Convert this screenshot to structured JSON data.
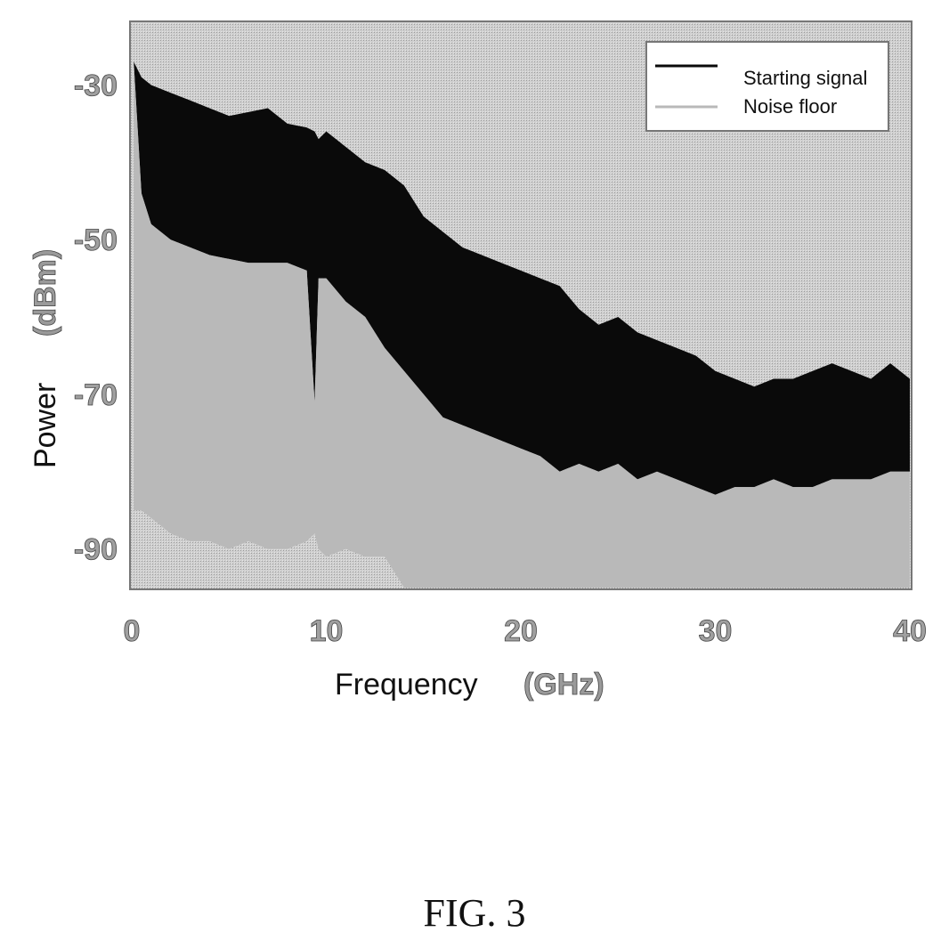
{
  "figure_caption": "FIG. 3",
  "colors": {
    "signal": "#0a0a0a",
    "noise_floor": "#b9b9b9",
    "plot_background": "#d8d8d8"
  },
  "chart_data": {
    "type": "area",
    "title": "",
    "xlabel": "Frequency",
    "xlabel_unit": "(GHz)",
    "ylabel": "Power",
    "ylabel_unit": "(dBm)",
    "xlim": [
      0,
      40
    ],
    "ylim": [
      -95,
      -22
    ],
    "xticks": [
      0,
      10,
      20,
      30,
      40
    ],
    "xtick_labels": [
      "0",
      "10",
      "20",
      "30",
      "40"
    ],
    "yticks": [
      -30,
      -50,
      -70,
      -90
    ],
    "ytick_labels": [
      "-30",
      "-50",
      "-70",
      "-90"
    ],
    "grid": false,
    "legend": {
      "placement": "top-right",
      "entries": [
        "Starting signal",
        "Noise floor"
      ]
    },
    "series": [
      {
        "name": "Starting signal",
        "x": [
          0.1,
          0.5,
          1,
          2,
          3,
          4,
          5,
          6,
          7,
          8,
          9,
          9.4,
          9.6,
          10,
          11,
          12,
          13,
          14,
          15,
          16,
          17,
          18,
          19,
          20,
          21,
          22,
          23,
          24,
          25,
          26,
          27,
          28,
          29,
          30,
          31,
          32,
          33,
          34,
          35,
          36,
          37,
          38,
          39,
          40
        ],
        "upper": [
          -27,
          -29,
          -30,
          -31,
          -32,
          -33,
          -34,
          -33.5,
          -33,
          -35,
          -35.5,
          -36,
          -37,
          -36,
          -38,
          -40,
          -41,
          -43,
          -47,
          -49,
          -51,
          -52,
          -53,
          -54,
          -55,
          -56,
          -59,
          -61,
          -60,
          -62,
          -63,
          -64,
          -65,
          -67,
          -68,
          -69,
          -68,
          -68,
          -67,
          -66,
          -67,
          -68,
          -66,
          -68
        ],
        "lower": [
          -27,
          -44,
          -48,
          -50,
          -51,
          -52,
          -52.5,
          -53,
          -53,
          -53,
          -54,
          -71,
          -55,
          -55,
          -58,
          -60,
          -64,
          -67,
          -70,
          -73,
          -74,
          -75,
          -76,
          -77,
          -78,
          -80,
          -79,
          -80,
          -79,
          -81,
          -80,
          -81,
          -82,
          -83,
          -82,
          -82,
          -81,
          -82,
          -82,
          -81,
          -81,
          -81,
          -80,
          -80
        ]
      },
      {
        "name": "Noise floor",
        "x": [
          0.1,
          0.5,
          1,
          2,
          3,
          4,
          5,
          6,
          7,
          8,
          9,
          9.4,
          9.6,
          10,
          11,
          12,
          13,
          14,
          15,
          16,
          17,
          18,
          19,
          20,
          21,
          22,
          23,
          24,
          25,
          26,
          27,
          28,
          29,
          30,
          31,
          32,
          33,
          34,
          35,
          36,
          37,
          38,
          39,
          40
        ],
        "upper": [
          -27,
          -44,
          -48,
          -50,
          -51,
          -52,
          -52.5,
          -53,
          -53,
          -53,
          -54,
          -71,
          -55,
          -55,
          -58,
          -60,
          -64,
          -67,
          -70,
          -73,
          -74,
          -75,
          -76,
          -77,
          -78,
          -80,
          -79,
          -80,
          -79,
          -81,
          -80,
          -81,
          -82,
          -83,
          -82,
          -82,
          -81,
          -82,
          -82,
          -81,
          -81,
          -81,
          -80,
          -80
        ],
        "lower": [
          -85,
          -85,
          -86,
          -88,
          -89,
          -89,
          -90,
          -89,
          -90,
          -90,
          -89,
          -88,
          -90,
          -91,
          -90,
          -91,
          -91,
          -95,
          -95,
          -95,
          -95,
          -95,
          -95,
          -95,
          -95,
          -95,
          -95,
          -95,
          -95,
          -95,
          -95,
          -95,
          -95,
          -95,
          -95,
          -95,
          -95,
          -95,
          -95,
          -95,
          -95,
          -95,
          -95,
          -95
        ]
      }
    ]
  }
}
